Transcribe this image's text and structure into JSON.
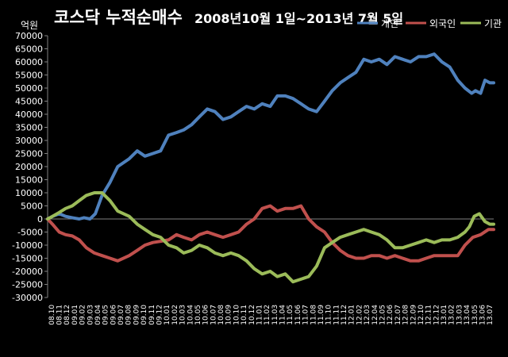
{
  "chart_data": {
    "type": "line",
    "title": "코스닥  누적순매수",
    "subtitle": "2008년10월 1일~2013년 7월 5일",
    "unit": "억원",
    "xlabel": "",
    "ylabel": "",
    "ylim": [
      -30000,
      70000
    ],
    "ytick_step": 5000,
    "yticks": [
      "-30000",
      "-25000",
      "-20000",
      "-15000",
      "-10000",
      "-5000",
      "0",
      "5000",
      "10000",
      "15000",
      "20000",
      "25000",
      "30000",
      "35000",
      "40000",
      "45000",
      "50000",
      "55000",
      "60000",
      "65000",
      "70000"
    ],
    "grid": false,
    "legend": "top-right",
    "x_date_range": [
      "2008-10-01",
      "2013-07-05"
    ],
    "x_tick_labels": [
      "08.10",
      "08.11",
      "08.12",
      "09.01",
      "09.02",
      "09.03",
      "09.04",
      "09.05",
      "09.06",
      "09.07",
      "09.08",
      "09.09",
      "09.10",
      "09.11",
      "09.12",
      "10.01",
      "10.02",
      "10.03",
      "10.04",
      "10.05",
      "10.06",
      "10.07",
      "10.08",
      "10.09",
      "10.10",
      "10.11",
      "10.12",
      "11.01",
      "11.02",
      "11.03",
      "11.04",
      "11.05",
      "11.06",
      "11.07",
      "11.08",
      "11.09",
      "11.10",
      "11.11",
      "11.12",
      "12.01",
      "12.02",
      "12.03",
      "12.04",
      "12.05",
      "12.06",
      "12.07",
      "12.08",
      "12.09",
      "12.10",
      "12.11",
      "12.12",
      "13.01",
      "13.02",
      "13.03",
      "13.04",
      "13.05",
      "13.06",
      "13.07"
    ],
    "series": [
      {
        "name": "개인",
        "color": "#4f81bd",
        "x": [
          "2008-10-01",
          "2008-10-20",
          "2008-11-15",
          "2008-12-10",
          "2009-01-05",
          "2009-02-01",
          "2009-02-20",
          "2009-03-15",
          "2009-04-05",
          "2009-05-01",
          "2009-06-01",
          "2009-07-01",
          "2009-08-15",
          "2009-09-15",
          "2009-10-15",
          "2009-11-15",
          "2009-12-15",
          "2010-01-15",
          "2010-02-15",
          "2010-03-15",
          "2010-04-15",
          "2010-05-15",
          "2010-06-15",
          "2010-07-15",
          "2010-08-15",
          "2010-09-15",
          "2010-10-15",
          "2010-11-15",
          "2010-12-15",
          "2011-01-15",
          "2011-02-15",
          "2011-03-15",
          "2011-04-15",
          "2011-05-15",
          "2011-06-15",
          "2011-07-15",
          "2011-08-15",
          "2011-09-15",
          "2011-10-15",
          "2011-11-15",
          "2011-12-15",
          "2012-01-15",
          "2012-02-15",
          "2012-03-15",
          "2012-04-15",
          "2012-05-15",
          "2012-06-15",
          "2012-07-15",
          "2012-08-15",
          "2012-09-15",
          "2012-10-15",
          "2012-11-15",
          "2012-12-15",
          "2013-01-15",
          "2013-02-15",
          "2013-03-15",
          "2013-04-10",
          "2013-04-25",
          "2013-05-15",
          "2013-06-01",
          "2013-06-20",
          "2013-07-05"
        ],
        "y": [
          0,
          1000,
          2000,
          1000,
          500,
          0,
          500,
          0,
          2000,
          9000,
          14000,
          20000,
          23000,
          26000,
          24000,
          25000,
          26000,
          32000,
          33000,
          34000,
          36000,
          39000,
          42000,
          41000,
          38000,
          39000,
          41000,
          43000,
          42000,
          44000,
          43000,
          47000,
          47000,
          46000,
          44000,
          42000,
          41000,
          45000,
          49000,
          52000,
          54000,
          56000,
          61000,
          60000,
          61000,
          59000,
          62000,
          61000,
          60000,
          62000,
          62000,
          63000,
          60000,
          58000,
          53000,
          50000,
          48000,
          49000,
          48000,
          53000,
          52000,
          52000
        ]
      },
      {
        "name": "외국인",
        "color": "#c0504d",
        "x": [
          "2008-10-01",
          "2008-10-20",
          "2008-11-15",
          "2008-12-10",
          "2009-01-05",
          "2009-02-01",
          "2009-03-01",
          "2009-04-01",
          "2009-05-01",
          "2009-06-01",
          "2009-07-01",
          "2009-08-15",
          "2009-09-15",
          "2009-10-15",
          "2009-11-15",
          "2009-12-15",
          "2010-01-15",
          "2010-02-15",
          "2010-03-15",
          "2010-04-15",
          "2010-05-15",
          "2010-06-15",
          "2010-07-15",
          "2010-08-15",
          "2010-09-15",
          "2010-10-15",
          "2010-11-15",
          "2010-12-15",
          "2011-01-15",
          "2011-02-15",
          "2011-03-15",
          "2011-04-15",
          "2011-05-15",
          "2011-06-15",
          "2011-07-15",
          "2011-08-15",
          "2011-09-15",
          "2011-10-15",
          "2011-11-15",
          "2011-12-15",
          "2012-01-15",
          "2012-02-15",
          "2012-03-15",
          "2012-04-15",
          "2012-05-15",
          "2012-06-15",
          "2012-07-15",
          "2012-08-15",
          "2012-09-15",
          "2012-10-15",
          "2012-11-15",
          "2012-12-15",
          "2013-01-15",
          "2013-02-15",
          "2013-03-15",
          "2013-04-15",
          "2013-05-15",
          "2013-06-15",
          "2013-07-05"
        ],
        "y": [
          0,
          -2000,
          -5000,
          -6000,
          -6500,
          -8000,
          -11000,
          -13000,
          -14000,
          -15000,
          -16000,
          -14000,
          -12000,
          -10000,
          -9000,
          -8500,
          -8000,
          -6000,
          -7000,
          -8000,
          -6000,
          -5000,
          -6000,
          -7000,
          -6000,
          -5000,
          -2000,
          0,
          4000,
          5000,
          3000,
          4000,
          4000,
          5000,
          0,
          -3000,
          -5000,
          -9000,
          -12000,
          -14000,
          -15000,
          -15000,
          -14000,
          -14000,
          -15000,
          -14000,
          -15000,
          -16000,
          -16000,
          -15000,
          -14000,
          -14000,
          -14000,
          -14000,
          -10000,
          -7000,
          -6000,
          -4000,
          -4000
        ]
      },
      {
        "name": "기관",
        "color": "#9bbb59",
        "x": [
          "2008-10-01",
          "2008-10-20",
          "2008-11-15",
          "2008-12-10",
          "2009-01-05",
          "2009-02-01",
          "2009-03-01",
          "2009-04-01",
          "2009-05-01",
          "2009-06-01",
          "2009-07-01",
          "2009-08-15",
          "2009-09-15",
          "2009-10-15",
          "2009-11-15",
          "2009-12-15",
          "2010-01-15",
          "2010-02-15",
          "2010-03-15",
          "2010-04-15",
          "2010-05-15",
          "2010-06-15",
          "2010-07-15",
          "2010-08-15",
          "2010-09-15",
          "2010-10-15",
          "2010-11-15",
          "2010-12-15",
          "2011-01-15",
          "2011-02-15",
          "2011-03-15",
          "2011-04-15",
          "2011-05-15",
          "2011-06-15",
          "2011-07-15",
          "2011-08-15",
          "2011-09-15",
          "2011-10-15",
          "2011-11-15",
          "2011-12-15",
          "2012-01-15",
          "2012-02-15",
          "2012-03-15",
          "2012-04-15",
          "2012-05-15",
          "2012-06-15",
          "2012-07-15",
          "2012-08-15",
          "2012-09-15",
          "2012-10-15",
          "2012-11-15",
          "2012-12-15",
          "2013-01-15",
          "2013-02-15",
          "2013-03-15",
          "2013-04-01",
          "2013-04-20",
          "2013-05-10",
          "2013-06-01",
          "2013-06-20",
          "2013-07-05"
        ],
        "y": [
          0,
          1000,
          2500,
          4000,
          5000,
          7000,
          9000,
          10000,
          10000,
          7000,
          3000,
          1000,
          -2000,
          -4000,
          -6000,
          -7000,
          -10000,
          -11000,
          -13000,
          -12000,
          -10000,
          -11000,
          -13000,
          -14000,
          -13000,
          -14000,
          -16000,
          -19000,
          -21000,
          -20000,
          -22000,
          -21000,
          -24000,
          -23000,
          -22000,
          -18000,
          -11000,
          -9000,
          -7000,
          -6000,
          -5000,
          -4000,
          -5000,
          -6000,
          -8000,
          -11000,
          -11000,
          -10000,
          -9000,
          -8000,
          -9000,
          -8000,
          -8000,
          -7000,
          -5000,
          -3000,
          1000,
          2000,
          -1000,
          -2000,
          -2000
        ]
      }
    ]
  }
}
